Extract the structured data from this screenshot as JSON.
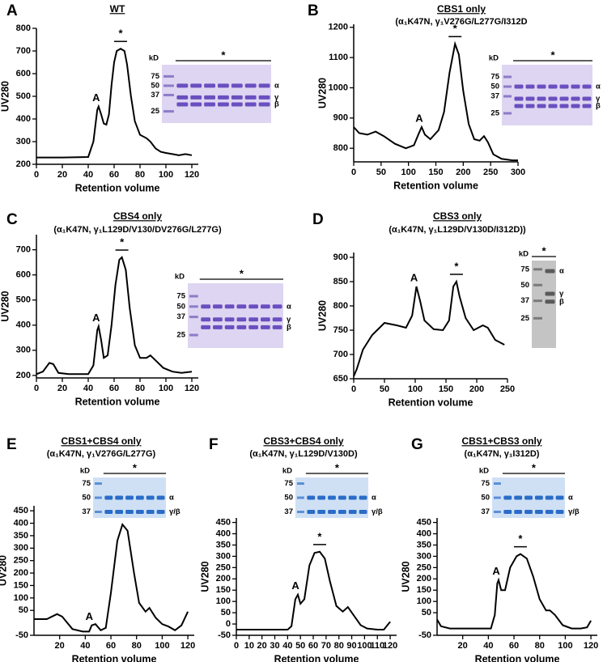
{
  "chart_data": [
    {
      "type": "line",
      "panel": "A",
      "title": "WT",
      "xlabel": "Retention volume",
      "ylabel": "UV280",
      "color": "#000000",
      "x": [
        0,
        20,
        40,
        44,
        47,
        48,
        50,
        52,
        54,
        56,
        58,
        60,
        62,
        65,
        68,
        70,
        73,
        76,
        80,
        85,
        88,
        92,
        96,
        100,
        105,
        110,
        115,
        120
      ],
      "values": [
        230,
        230,
        232,
        300,
        440,
        455,
        420,
        380,
        375,
        420,
        550,
        650,
        700,
        710,
        700,
        640,
        500,
        390,
        330,
        315,
        300,
        270,
        255,
        250,
        245,
        240,
        245,
        240
      ],
      "xlim": [
        0,
        125
      ],
      "ylim": [
        200,
        800
      ],
      "xticks": [
        0,
        20,
        40,
        60,
        80,
        100,
        120
      ],
      "yticks": [
        200,
        300,
        400,
        500,
        600,
        700,
        800
      ],
      "annotations": [
        "A",
        "*"
      ],
      "gel": {
        "kd_label": "kD",
        "markers": [
          "75",
          "50",
          "37",
          "25"
        ],
        "bands": [
          "α",
          "γ",
          "β"
        ],
        "star": "*"
      }
    },
    {
      "type": "line",
      "panel": "B",
      "title": "CBS1 only",
      "subtitle": "(α₁K47N, γ₁V276G/L277G/I312D",
      "xlabel": "Retention volume",
      "ylabel": "UV280",
      "color": "#000000",
      "x": [
        0,
        10,
        25,
        40,
        55,
        75,
        95,
        110,
        118,
        124,
        130,
        140,
        155,
        165,
        175,
        185,
        192,
        200,
        210,
        220,
        230,
        238,
        245,
        255,
        270,
        290,
        300
      ],
      "values": [
        870,
        850,
        845,
        855,
        840,
        815,
        800,
        810,
        845,
        870,
        845,
        830,
        860,
        920,
        1050,
        1145,
        1110,
        990,
        880,
        830,
        825,
        840,
        820,
        780,
        765,
        760,
        760
      ],
      "xlim": [
        0,
        300
      ],
      "ylim": [
        755,
        1210
      ],
      "xticks": [
        0,
        50,
        100,
        150,
        200,
        250,
        300
      ],
      "yticks": [
        800,
        900,
        1000,
        1100,
        1200
      ],
      "annotations": [
        "A",
        "*"
      ],
      "gel": {
        "kd_label": "kD",
        "markers": [
          "75",
          "50",
          "37",
          "25"
        ],
        "bands": [
          "α",
          "γ",
          "β"
        ],
        "star": "*"
      }
    },
    {
      "type": "line",
      "panel": "C",
      "title": "CBS4 only",
      "subtitle": "(α₁K47N, γ₁L129D/V130/DV276G/L277G)",
      "xlabel": "Retention volume",
      "ylabel": "UV280",
      "color": "#000000",
      "x": [
        0,
        5,
        10,
        13,
        17,
        25,
        40,
        44,
        47,
        48,
        50,
        52,
        55,
        58,
        61,
        64,
        66,
        69,
        72,
        76,
        80,
        85,
        88,
        92,
        98,
        105,
        112,
        120
      ],
      "values": [
        205,
        215,
        250,
        245,
        210,
        205,
        205,
        240,
        380,
        395,
        340,
        270,
        280,
        400,
        560,
        660,
        670,
        620,
        470,
        320,
        270,
        270,
        280,
        260,
        230,
        215,
        210,
        215
      ],
      "xlim": [
        0,
        125
      ],
      "ylim": [
        190,
        760
      ],
      "xticks": [
        0,
        20,
        40,
        60,
        80,
        100,
        120
      ],
      "yticks": [
        200,
        300,
        400,
        500,
        600,
        700
      ],
      "annotations": [
        "A",
        "*"
      ],
      "gel": {
        "kd_label": "kD",
        "markers": [
          "75",
          "50",
          "37",
          "25"
        ],
        "bands": [
          "α",
          "γ",
          "β"
        ],
        "star": "*"
      }
    },
    {
      "type": "line",
      "panel": "D",
      "title": "CBS3 only",
      "subtitle": "(α₁K47N, γ₁L129D/V130D/I312D))",
      "xlabel": "Retention volume",
      "ylabel": "UV280",
      "color": "#000000",
      "x": [
        0,
        5,
        15,
        30,
        50,
        70,
        85,
        95,
        102,
        108,
        115,
        130,
        145,
        155,
        162,
        167,
        172,
        182,
        195,
        210,
        218,
        230,
        245
      ],
      "values": [
        655,
        670,
        710,
        740,
        765,
        760,
        755,
        780,
        840,
        810,
        770,
        752,
        750,
        770,
        840,
        850,
        820,
        775,
        750,
        760,
        755,
        730,
        720
      ],
      "xlim": [
        0,
        250
      ],
      "ylim": [
        650,
        910
      ],
      "xticks": [
        0,
        50,
        100,
        150,
        200,
        250
      ],
      "yticks": [
        650,
        700,
        750,
        800,
        850,
        900
      ],
      "annotations": [
        "A",
        "*"
      ],
      "gel": {
        "kd_label": "kD",
        "markers": [
          "75",
          "50",
          "37",
          "25"
        ],
        "bands": [
          "α",
          "γ",
          "β"
        ],
        "star": "*"
      }
    },
    {
      "type": "line",
      "panel": "E",
      "title": "CBS1+CBS4 only",
      "subtitle": "(α₁K47N, γ₁V276G/L277G)",
      "xlabel": "Retention volume",
      "ylabel": "UV280",
      "color": "#000000",
      "x": [
        0,
        10,
        18,
        22,
        30,
        38,
        43,
        45,
        48,
        52,
        56,
        60,
        65,
        69,
        73,
        78,
        82,
        87,
        90,
        95,
        100,
        105,
        110,
        115,
        120
      ],
      "values": [
        15,
        15,
        35,
        25,
        -25,
        -35,
        -35,
        -10,
        -5,
        -30,
        -20,
        120,
        330,
        395,
        370,
        200,
        80,
        45,
        60,
        20,
        -5,
        -15,
        -30,
        -10,
        45
      ],
      "xlim": [
        0,
        125
      ],
      "ylim": [
        -50,
        470
      ],
      "xticks": [
        20,
        40,
        60,
        80,
        100,
        120
      ],
      "yticks": [
        -50,
        50,
        100,
        150,
        200,
        250,
        300,
        350,
        400,
        450
      ],
      "annotations": [
        "A",
        "*"
      ],
      "gel": {
        "kd_label": "kD",
        "markers": [
          "75",
          "50",
          "37"
        ],
        "bands": [
          "α",
          "γ/β"
        ],
        "star": "*"
      }
    },
    {
      "type": "line",
      "panel": "F",
      "title": "CBS3+CBS4 only",
      "subtitle": "(α₁K47N, γ₁L129D/V130D)",
      "xlabel": "Retention volume",
      "ylabel": "UV280",
      "color": "#000000",
      "x": [
        0,
        20,
        40,
        43,
        46,
        48,
        50,
        53,
        57,
        61,
        65,
        69,
        73,
        78,
        83,
        87,
        92,
        97,
        102,
        110,
        115,
        120
      ],
      "values": [
        -25,
        -25,
        -25,
        -10,
        110,
        130,
        90,
        110,
        260,
        315,
        320,
        290,
        190,
        80,
        55,
        75,
        35,
        -5,
        -20,
        -25,
        -25,
        10
      ],
      "xlim": [
        0,
        125
      ],
      "ylim": [
        -50,
        470
      ],
      "xticks": [
        0,
        10,
        20,
        30,
        40,
        50,
        60,
        70,
        80,
        90,
        100,
        110,
        120
      ],
      "yticks": [
        -50,
        0,
        50,
        100,
        150,
        200,
        250,
        300,
        350,
        400,
        450
      ],
      "annotations": [
        "A",
        "*"
      ],
      "gel": {
        "kd_label": "kD",
        "markers": [
          "75",
          "50",
          "37"
        ],
        "bands": [
          "α",
          "γ/β"
        ],
        "star": "*"
      }
    },
    {
      "type": "line",
      "panel": "G",
      "title": "CBS1+CBS3 only",
      "subtitle": "(α₁K47N, γ₁I312D)",
      "xlabel": "Retention volume",
      "ylabel": "UV280",
      "color": "#000000",
      "x": [
        0,
        3,
        10,
        30,
        42,
        45,
        47,
        48,
        50,
        53,
        57,
        62,
        65,
        70,
        75,
        80,
        85,
        88,
        92,
        98,
        105,
        112,
        117,
        120
      ],
      "values": [
        20,
        -10,
        -20,
        -20,
        -20,
        40,
        180,
        195,
        150,
        150,
        250,
        300,
        310,
        290,
        210,
        110,
        60,
        60,
        40,
        -5,
        -20,
        -20,
        -15,
        15
      ],
      "xlim": [
        0,
        125
      ],
      "ylim": [
        -50,
        470
      ],
      "xticks": [
        20,
        40,
        60,
        80,
        100,
        120
      ],
      "yticks": [
        -50,
        50,
        100,
        150,
        200,
        250,
        300,
        350,
        400,
        450
      ],
      "annotations": [
        "A",
        "*"
      ],
      "gel": {
        "kd_label": "kD",
        "markers": [
          "75",
          "50",
          "37"
        ],
        "bands": [
          "α",
          "γ/β"
        ],
        "star": "*"
      }
    }
  ]
}
